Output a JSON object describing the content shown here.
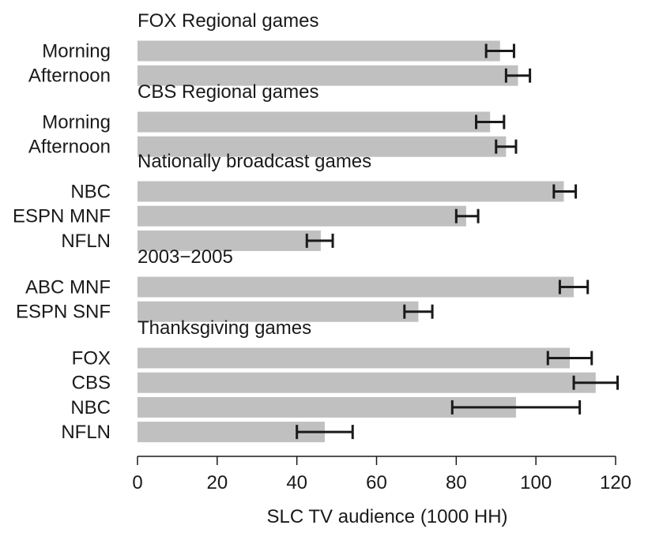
{
  "chart_data": {
    "type": "bar",
    "orientation": "horizontal",
    "xlabel": "SLC TV audience (1000 HH)",
    "xlim": [
      0,
      120
    ],
    "xticks": [
      0,
      20,
      40,
      60,
      80,
      100,
      120
    ],
    "grid": false,
    "bar_color": "#c0c0c0",
    "errorbar_color": "#1a1a1a",
    "groups": [
      {
        "title": "FOX Regional games",
        "bars": [
          {
            "label": "Morning",
            "value": 91,
            "err_low": 87.5,
            "err_high": 94.5
          },
          {
            "label": "Afternoon",
            "value": 95.5,
            "err_low": 92.5,
            "err_high": 98.5
          }
        ]
      },
      {
        "title": "CBS Regional games",
        "bars": [
          {
            "label": "Morning",
            "value": 88.5,
            "err_low": 85,
            "err_high": 92
          },
          {
            "label": "Afternoon",
            "value": 92.5,
            "err_low": 90,
            "err_high": 95
          }
        ]
      },
      {
        "title": "Nationally broadcast games",
        "bars": [
          {
            "label": "NBC",
            "value": 107,
            "err_low": 104.5,
            "err_high": 110
          },
          {
            "label": "ESPN MNF",
            "value": 82.5,
            "err_low": 80,
            "err_high": 85.5
          },
          {
            "label": "NFLN",
            "value": 46,
            "err_low": 42.5,
            "err_high": 49
          }
        ]
      },
      {
        "title": "2003−2005",
        "bars": [
          {
            "label": "ABC MNF",
            "value": 109.5,
            "err_low": 106,
            "err_high": 113
          },
          {
            "label": "ESPN SNF",
            "value": 70.5,
            "err_low": 67,
            "err_high": 74
          }
        ]
      },
      {
        "title": "Thanksgiving games",
        "bars": [
          {
            "label": "FOX",
            "value": 108.5,
            "err_low": 103,
            "err_high": 114
          },
          {
            "label": "CBS",
            "value": 115,
            "err_low": 109.5,
            "err_high": 120.5
          },
          {
            "label": "NBC",
            "value": 95,
            "err_low": 79,
            "err_high": 111
          },
          {
            "label": "NFLN",
            "value": 47,
            "err_low": 40,
            "err_high": 54
          }
        ]
      }
    ]
  }
}
